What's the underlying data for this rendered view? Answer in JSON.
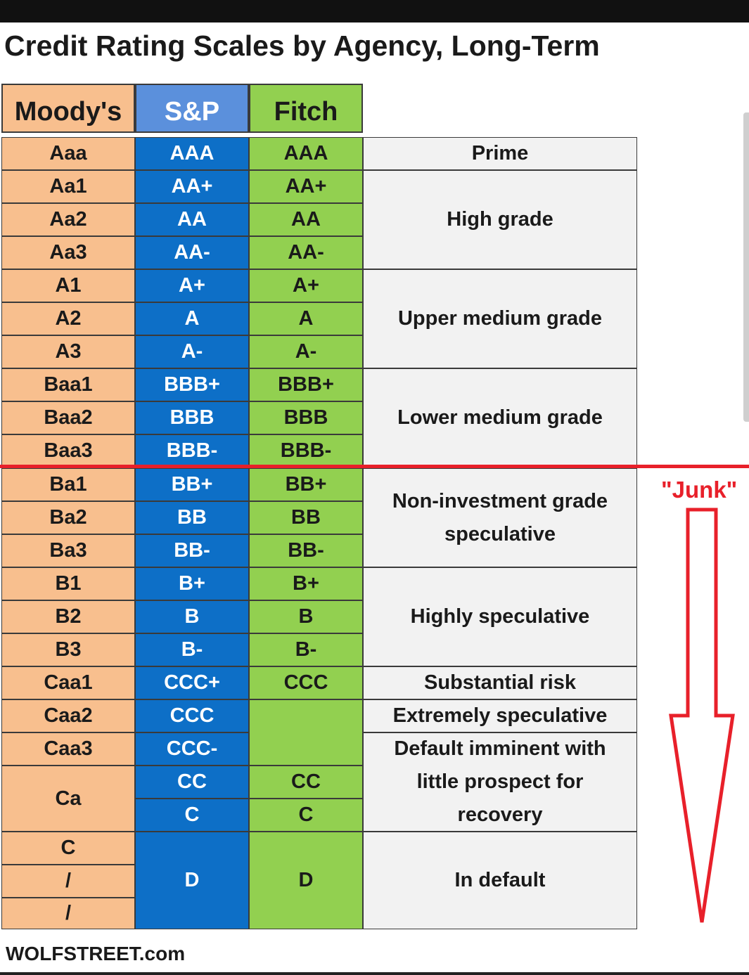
{
  "title": "Credit Rating Scales by Agency, Long-Term",
  "headers": {
    "moodys": "Moody's",
    "sp": "S&P",
    "fitch": "Fitch"
  },
  "rows": [
    {
      "moodys": "Aaa",
      "sp": "AAA",
      "fitch": "AAA"
    },
    {
      "moodys": "Aa1",
      "sp": "AA+",
      "fitch": "AA+"
    },
    {
      "moodys": "Aa2",
      "sp": "AA",
      "fitch": "AA"
    },
    {
      "moodys": "Aa3",
      "sp": "AA-",
      "fitch": "AA-"
    },
    {
      "moodys": "A1",
      "sp": "A+",
      "fitch": "A+"
    },
    {
      "moodys": "A2",
      "sp": "A",
      "fitch": "A"
    },
    {
      "moodys": "A3",
      "sp": "A-",
      "fitch": "A-"
    },
    {
      "moodys": "Baa1",
      "sp": "BBB+",
      "fitch": "BBB+"
    },
    {
      "moodys": "Baa2",
      "sp": "BBB",
      "fitch": "BBB"
    },
    {
      "moodys": "Baa3",
      "sp": "BBB-",
      "fitch": "BBB-"
    },
    {
      "moodys": "Ba1",
      "sp": "BB+",
      "fitch": "BB+"
    },
    {
      "moodys": "Ba2",
      "sp": "BB",
      "fitch": "BB"
    },
    {
      "moodys": "Ba3",
      "sp": "BB-",
      "fitch": "BB-"
    },
    {
      "moodys": "B1",
      "sp": "B+",
      "fitch": "B+"
    },
    {
      "moodys": "B2",
      "sp": "B",
      "fitch": "B"
    },
    {
      "moodys": "B3",
      "sp": "B-",
      "fitch": "B-"
    },
    {
      "moodys": "Caa1",
      "sp": "CCC+",
      "fitch": "CCC"
    },
    {
      "moodys": "Caa2",
      "sp": "CCC",
      "fitch": ""
    },
    {
      "moodys": "Caa3",
      "sp": "CCC-",
      "fitch": ""
    },
    {
      "moodys": "Ca",
      "sp": "CC",
      "fitch": "CC"
    },
    {
      "moodys": "",
      "sp": "C",
      "fitch": "C"
    },
    {
      "moodys": "C",
      "sp": "D",
      "fitch": "D"
    },
    {
      "moodys": "/",
      "sp": "",
      "fitch": ""
    },
    {
      "moodys": "/",
      "sp": "",
      "fitch": ""
    }
  ],
  "descriptions": {
    "prime": "Prime",
    "high_grade": "High grade",
    "upper_medium": "Upper medium grade",
    "lower_medium": "Lower medium grade",
    "non_investment": "Non-investment grade speculative",
    "highly_speculative": "Highly speculative",
    "substantial_risk": "Substantial risk",
    "extremely_speculative": "Extremely speculative",
    "default_imminent": "Default imminent with little prospect for recovery",
    "in_default": "In default"
  },
  "junk_label": "\"Junk\"",
  "footer": "WOLFSTREET.com",
  "colors": {
    "moodys": "#f8bf8e",
    "sp_header": "#5b90dc",
    "sp": "#0d6fc7",
    "fitch": "#92d050",
    "description": "#f2f2f2",
    "junk": "#e8202a"
  },
  "icons": {
    "junk_arrow": "down-arrow-icon"
  }
}
